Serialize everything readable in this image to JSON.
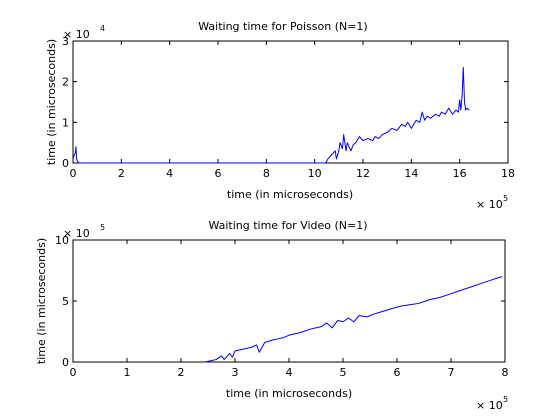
{
  "chart_data": [
    {
      "type": "line",
      "title": "Waiting time for Poisson (N=1)",
      "xlabel": "time (in microseconds)",
      "ylabel": "time (in microseconds)",
      "x_multiplier": "10",
      "x_exponent": "5",
      "y_multiplier": "10",
      "y_exponent": "4",
      "xlim": [
        0,
        18
      ],
      "ylim": [
        0,
        3
      ],
      "xticks": [
        0,
        2,
        4,
        6,
        8,
        10,
        12,
        14,
        16,
        18
      ],
      "xtick_labels": [
        "0",
        "2",
        "4",
        "6",
        "8",
        "10",
        "12",
        "14",
        "16",
        "18"
      ],
      "yticks": [
        0,
        1,
        2,
        3
      ],
      "ytick_labels": [
        "0",
        "1",
        "2",
        "3"
      ],
      "grid": false,
      "color": "#0000ff",
      "series": [
        {
          "x": [
            0,
            0.05,
            0.1,
            0.12,
            0.15,
            0.18,
            0.22,
            0.25,
            10.45,
            10.55,
            10.7,
            10.85,
            10.9,
            11.0,
            11.05,
            11.15,
            11.2,
            11.3,
            11.35,
            11.5,
            11.6,
            11.7,
            11.85,
            12.0,
            12.2,
            12.4,
            12.5,
            12.65,
            12.8,
            13.0,
            13.2,
            13.4,
            13.6,
            13.75,
            13.85,
            14.0,
            14.2,
            14.35,
            14.45,
            14.55,
            14.65,
            14.8,
            15.0,
            15.15,
            15.25,
            15.4,
            15.55,
            15.7,
            15.85,
            15.95,
            16.0,
            16.05,
            16.1,
            16.15,
            16.2,
            16.25,
            16.3,
            16.4
          ],
          "y": [
            0.1,
            0.2,
            0.25,
            0.4,
            0.1,
            0.05,
            0.02,
            0.0,
            0.0,
            0.1,
            0.2,
            0.3,
            0.1,
            0.3,
            0.5,
            0.35,
            0.7,
            0.3,
            0.5,
            0.3,
            0.45,
            0.5,
            0.65,
            0.55,
            0.6,
            0.55,
            0.65,
            0.6,
            0.7,
            0.75,
            0.85,
            0.8,
            0.95,
            0.9,
            1.0,
            0.85,
            1.05,
            1.0,
            1.25,
            1.05,
            1.15,
            1.1,
            1.2,
            1.15,
            1.25,
            1.2,
            1.35,
            1.2,
            1.3,
            1.25,
            1.55,
            1.3,
            1.65,
            2.35,
            1.5,
            1.3,
            1.35,
            1.3
          ]
        }
      ]
    },
    {
      "type": "line",
      "title": "Waiting time for Video (N=1)",
      "xlabel": "time (in microseconds)",
      "ylabel": "time (in microseconds)",
      "x_multiplier": "10",
      "x_exponent": "5",
      "y_multiplier": "10",
      "y_exponent": "5",
      "xlim": [
        0,
        8
      ],
      "ylim": [
        0,
        10
      ],
      "xticks": [
        0,
        1,
        2,
        3,
        4,
        5,
        6,
        7,
        8
      ],
      "xtick_labels": [
        "0",
        "1",
        "2",
        "3",
        "4",
        "5",
        "6",
        "7",
        "8"
      ],
      "yticks": [
        0,
        5,
        10
      ],
      "ytick_labels": [
        "0",
        "5",
        "10"
      ],
      "grid": false,
      "color": "#0000ff",
      "series": [
        {
          "x": [
            2.45,
            2.55,
            2.65,
            2.75,
            2.8,
            2.9,
            2.95,
            3.0,
            3.1,
            3.2,
            3.3,
            3.4,
            3.45,
            3.55,
            3.7,
            3.8,
            3.9,
            4.0,
            4.2,
            4.4,
            4.6,
            4.7,
            4.8,
            4.9,
            5.0,
            5.1,
            5.2,
            5.3,
            5.45,
            5.55,
            5.7,
            5.85,
            6.0,
            6.1,
            6.25,
            6.4,
            6.5,
            6.6,
            6.8,
            7.0,
            7.2,
            7.4,
            7.6,
            7.8,
            7.95
          ],
          "y": [
            0.0,
            0.1,
            0.2,
            0.5,
            0.2,
            0.7,
            0.4,
            0.9,
            1.0,
            1.1,
            1.2,
            1.4,
            0.8,
            1.6,
            1.8,
            1.9,
            2.0,
            2.2,
            2.4,
            2.7,
            2.9,
            3.2,
            2.8,
            3.4,
            3.3,
            3.6,
            3.3,
            3.8,
            3.7,
            3.9,
            4.1,
            4.3,
            4.5,
            4.6,
            4.7,
            4.8,
            4.95,
            5.1,
            5.3,
            5.6,
            5.9,
            6.2,
            6.5,
            6.8,
            7.0
          ]
        }
      ]
    }
  ]
}
